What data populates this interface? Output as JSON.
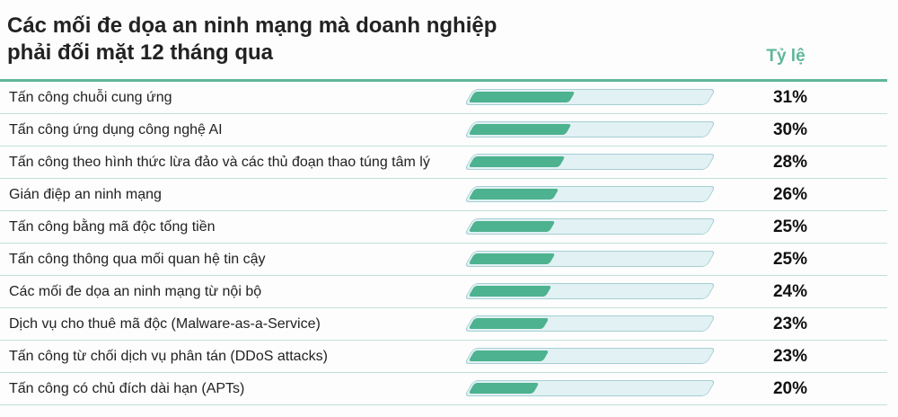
{
  "chart_data": {
    "type": "bar",
    "title": "Các mối đe dọa an ninh mạng mà doanh nghiệp phải đối mặt 12 tháng qua",
    "value_header": "Tỷ lệ",
    "categories": [
      "Tấn công chuỗi cung ứng",
      "Tấn công ứng dụng công nghệ AI",
      "Tấn công theo hình thức lừa đảo và các thủ đoạn thao túng tâm lý",
      "Gián điệp an ninh mạng",
      "Tấn công bằng mã độc tống tiền",
      "Tấn công thông qua mối quan hệ tin cậy",
      "Các mối đe dọa an ninh mạng từ nội bộ",
      "Dịch vụ cho thuê mã độc (Malware-as-a-Service)",
      "Tấn công từ chối dịch vụ phân tán (DDoS attacks)",
      "Tấn công có chủ đích dài hạn (APTs)"
    ],
    "values": [
      31,
      30,
      28,
      26,
      25,
      25,
      24,
      23,
      23,
      20
    ],
    "value_labels": [
      "31%",
      "30%",
      "28%",
      "26%",
      "25%",
      "25%",
      "24%",
      "23%",
      "23%",
      "20%"
    ],
    "color": "#4db28f",
    "track_color": "#e1f1f4"
  }
}
